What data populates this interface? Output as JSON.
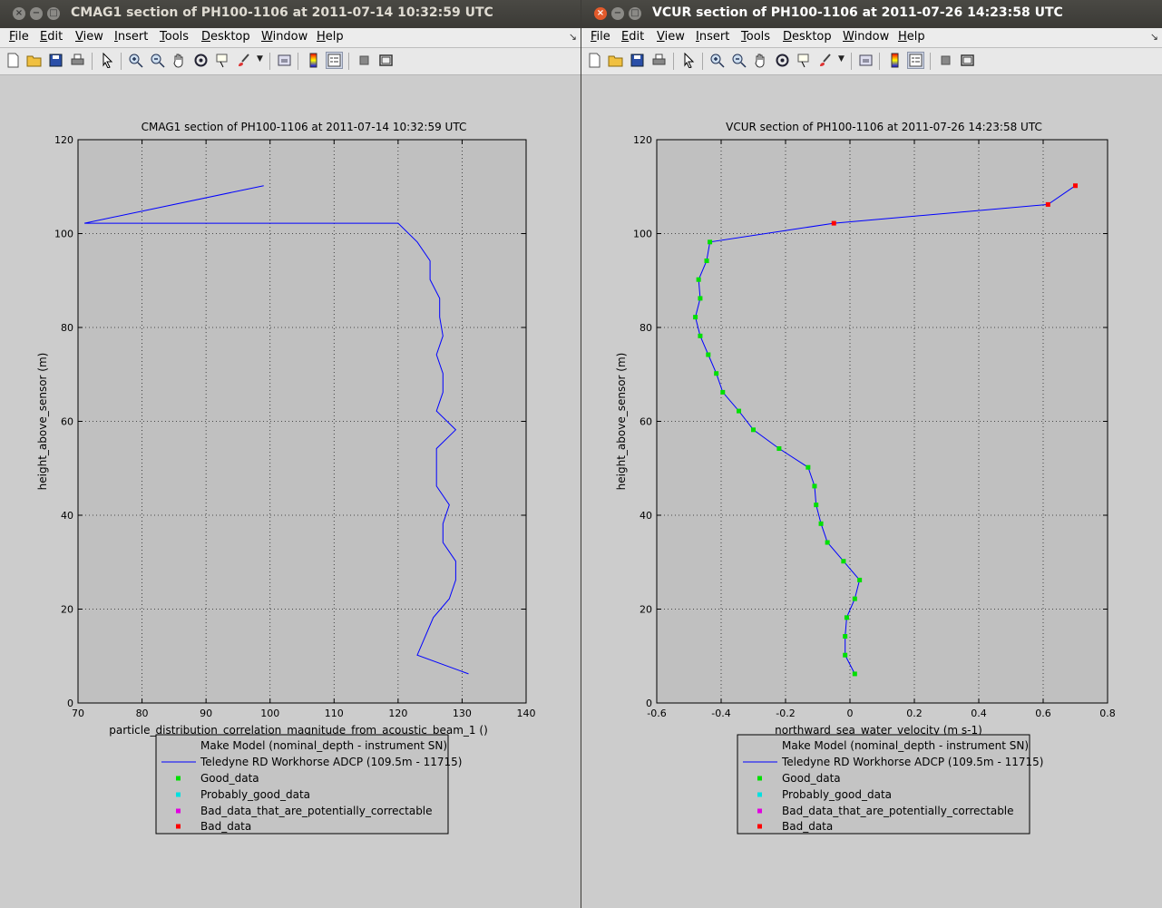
{
  "menu": [
    "File",
    "Edit",
    "View",
    "Insert",
    "Tools",
    "Desktop",
    "Window",
    "Help"
  ],
  "left": {
    "window_title": "CMAG1 section of PH100-1106 at 2011-07-14 10:32:59 UTC",
    "chart_title": "CMAG1 section of PH100-1106 at 2011-07-14 10:32:59 UTC",
    "xlabel": "particle_distribution_correlation_magnitude_from_acoustic_beam_1 ()",
    "ylabel": "height_above_sensor (m)",
    "xticks": [
      "70",
      "80",
      "90",
      "100",
      "110",
      "120",
      "130",
      "140"
    ],
    "yticks": [
      "0",
      "20",
      "40",
      "60",
      "80",
      "100",
      "120"
    ]
  },
  "right": {
    "window_title": "VCUR section of PH100-1106 at 2011-07-26 14:23:58 UTC",
    "chart_title": "VCUR section of PH100-1106 at 2011-07-26 14:23:58 UTC",
    "xlabel": "northward_sea_water_velocity (m s-1)",
    "ylabel": "height_above_sensor (m)",
    "xticks": [
      "-0.6",
      "-0.4",
      "-0.2",
      "0",
      "0.2",
      "0.4",
      "0.6",
      "0.8"
    ],
    "yticks": [
      "0",
      "20",
      "40",
      "60",
      "80",
      "100",
      "120"
    ]
  },
  "legend": {
    "header": "Make Model (nominal_depth - instrument SN)",
    "series": "Teledyne RD Workhorse ADCP (109.5m - 11715)",
    "good": "Good_data",
    "probably_good": "Probably_good_data",
    "correctable": "Bad_data_that_are_potentially_correctable",
    "bad": "Bad_data"
  },
  "colors": {
    "line": "#0000ff",
    "good": "#00e000",
    "probably_good": "#00e0e0",
    "correctable": "#e000e0",
    "bad": "#ff0000"
  },
  "chart_data": [
    {
      "type": "line",
      "title": "CMAG1 section of PH100-1106 at 2011-07-14 10:32:59 UTC",
      "xlabel": "particle_distribution_correlation_magnitude_from_acoustic_beam_1 ()",
      "ylabel": "height_above_sensor (m)",
      "xlim": [
        70,
        140
      ],
      "ylim": [
        0,
        120
      ],
      "grid": true,
      "legend_position": "bottom",
      "series": [
        {
          "name": "Teledyne RD Workhorse ADCP (109.5m - 11715)",
          "x": [
            131,
            123,
            125.5,
            128,
            129,
            129,
            127,
            127,
            128,
            126,
            126,
            129,
            126,
            127,
            127,
            126,
            127,
            126.5,
            126.5,
            125,
            125,
            123,
            120,
            71,
            99
          ],
          "y": [
            6.2,
            10.2,
            18.2,
            22.2,
            26.2,
            30.2,
            34.2,
            38.2,
            42.2,
            46.2,
            54.2,
            58.2,
            62.2,
            66.2,
            70.2,
            74.2,
            78.2,
            82.2,
            86.2,
            90.2,
            94.2,
            98.2,
            102.2,
            102.2,
            110.2
          ]
        }
      ]
    },
    {
      "type": "line",
      "title": "VCUR section of PH100-1106 at 2011-07-26 14:23:58 UTC",
      "xlabel": "northward_sea_water_velocity (m s-1)",
      "ylabel": "height_above_sensor (m)",
      "xlim": [
        -0.6,
        0.8
      ],
      "ylim": [
        0,
        120
      ],
      "grid": true,
      "legend_position": "bottom",
      "series": [
        {
          "name": "Teledyne RD Workhorse ADCP (109.5m - 11715)",
          "x": [
            0.015,
            -0.015,
            -0.015,
            -0.01,
            0.015,
            0.03,
            -0.02,
            -0.07,
            -0.09,
            -0.105,
            -0.11,
            -0.13,
            -0.22,
            -0.3,
            -0.345,
            -0.395,
            -0.415,
            -0.44,
            -0.465,
            -0.48,
            -0.465,
            -0.47,
            -0.445,
            -0.435,
            -0.05,
            0.615,
            0.7
          ],
          "y": [
            6.2,
            10.2,
            14.2,
            18.2,
            22.2,
            26.2,
            30.2,
            34.2,
            38.2,
            42.2,
            46.2,
            50.2,
            54.2,
            58.2,
            62.2,
            66.2,
            70.2,
            74.2,
            78.2,
            82.2,
            86.2,
            90.2,
            94.2,
            98.2,
            102.2,
            106.2,
            110.2
          ],
          "flags": [
            "good",
            "good",
            "good",
            "good",
            "good",
            "good",
            "good",
            "good",
            "good",
            "good",
            "good",
            "good",
            "good",
            "good",
            "good",
            "good",
            "good",
            "good",
            "good",
            "good",
            "good",
            "good",
            "good",
            "good",
            "bad",
            "bad",
            "bad"
          ]
        }
      ]
    }
  ]
}
